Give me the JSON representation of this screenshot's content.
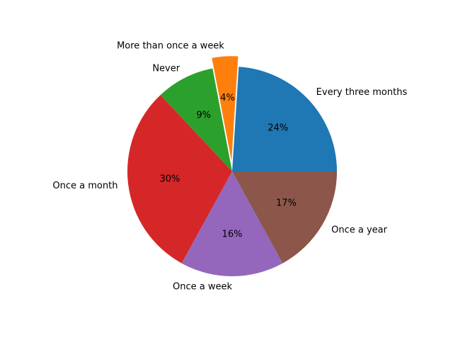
{
  "chart_data": {
    "type": "pie",
    "title": "",
    "start_angle_deg": 0,
    "direction": "counterclockwise",
    "slices": [
      {
        "label": "Every three months",
        "value": 24,
        "pct_label": "24%",
        "color": "#1f77b4",
        "exploded": false
      },
      {
        "label": "More than once a week",
        "value": 4,
        "pct_label": "4%",
        "color": "#ff7f0e",
        "exploded": true
      },
      {
        "label": "Never",
        "value": 9,
        "pct_label": "9%",
        "color": "#2ca02c",
        "exploded": false
      },
      {
        "label": "Once a month",
        "value": 30,
        "pct_label": "30%",
        "color": "#d62728",
        "exploded": false
      },
      {
        "label": "Once a week",
        "value": 16,
        "pct_label": "16%",
        "color": "#9467bd",
        "exploded": false
      },
      {
        "label": "Once a year",
        "value": 17,
        "pct_label": "17%",
        "color": "#8c564b",
        "exploded": false
      }
    ]
  }
}
